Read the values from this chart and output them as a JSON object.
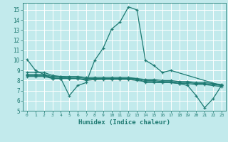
{
  "xlabel": "Humidex (Indice chaleur)",
  "xlim": [
    -0.5,
    23.5
  ],
  "ylim": [
    5,
    15.7
  ],
  "yticks": [
    5,
    6,
    7,
    8,
    9,
    10,
    11,
    12,
    13,
    14,
    15
  ],
  "xticks": [
    0,
    1,
    2,
    3,
    4,
    5,
    6,
    7,
    8,
    9,
    10,
    11,
    12,
    13,
    14,
    15,
    16,
    17,
    18,
    19,
    20,
    21,
    22,
    23
  ],
  "background_color": "#c2eaec",
  "grid_color": "#ffffff",
  "line_color": "#1e7a72",
  "series": [
    {
      "x": [
        0,
        1,
        2,
        3,
        4,
        5,
        6,
        7,
        8,
        9,
        10,
        11,
        12,
        13,
        14,
        15,
        16,
        17,
        23
      ],
      "y": [
        10.1,
        9.0,
        8.6,
        8.2,
        8.2,
        6.5,
        7.5,
        7.8,
        10.0,
        11.2,
        13.1,
        13.8,
        15.3,
        15.0,
        10.0,
        9.5,
        8.8,
        9.0,
        7.5
      ]
    },
    {
      "x": [
        0,
        1,
        2,
        3,
        4,
        5,
        6,
        7,
        8,
        9,
        10,
        11,
        12,
        13,
        14,
        15,
        16,
        17,
        18,
        19,
        20,
        21,
        22,
        23
      ],
      "y": [
        8.6,
        8.6,
        8.6,
        8.4,
        8.4,
        8.4,
        8.4,
        8.3,
        8.3,
        8.3,
        8.3,
        8.3,
        8.3,
        8.2,
        8.1,
        8.1,
        8.0,
        8.0,
        7.9,
        7.9,
        7.8,
        7.8,
        7.7,
        7.6
      ]
    },
    {
      "x": [
        0,
        1,
        2,
        3,
        4,
        5,
        6,
        7,
        8,
        9,
        10,
        11,
        12,
        13,
        14,
        15,
        16,
        17,
        18,
        19,
        20,
        21,
        22,
        23
      ],
      "y": [
        8.5,
        8.5,
        8.5,
        8.3,
        8.3,
        8.3,
        8.3,
        8.2,
        8.2,
        8.2,
        8.2,
        8.2,
        8.2,
        8.1,
        8.0,
        8.0,
        7.9,
        7.9,
        7.8,
        7.8,
        7.7,
        7.7,
        7.6,
        7.5
      ]
    },
    {
      "x": [
        0,
        1,
        2,
        3,
        4,
        5,
        6,
        7,
        8,
        9,
        10,
        11,
        12,
        13,
        14,
        15,
        16,
        17,
        18,
        19,
        20,
        21,
        22,
        23
      ],
      "y": [
        8.4,
        8.4,
        8.4,
        8.2,
        8.2,
        8.2,
        8.2,
        8.1,
        8.1,
        8.1,
        8.1,
        8.1,
        8.1,
        8.0,
        7.9,
        7.9,
        7.8,
        7.8,
        7.7,
        7.7,
        7.6,
        7.6,
        7.5,
        7.4
      ]
    },
    {
      "x": [
        0,
        1,
        2,
        3,
        4,
        5,
        6,
        7,
        8,
        9,
        10,
        11,
        12,
        13,
        14,
        15,
        16,
        17,
        18,
        19,
        20,
        21,
        22,
        23
      ],
      "y": [
        8.8,
        8.8,
        8.8,
        8.5,
        8.4,
        8.2,
        8.2,
        8.0,
        8.1,
        8.2,
        8.2,
        8.2,
        8.2,
        8.2,
        7.8,
        7.8,
        7.8,
        7.8,
        7.7,
        7.5,
        6.5,
        5.3,
        6.2,
        7.5
      ]
    }
  ]
}
